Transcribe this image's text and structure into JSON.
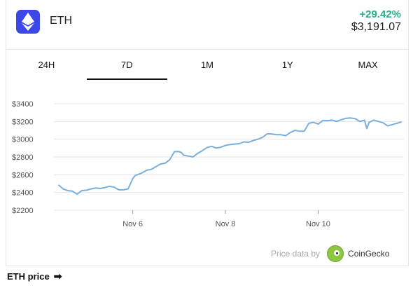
{
  "header": {
    "symbol": "ETH",
    "change": "+29.42%",
    "price": "$3,191.07"
  },
  "tabs": [
    {
      "label": "24H",
      "active": false
    },
    {
      "label": "7D",
      "active": true
    },
    {
      "label": "1M",
      "active": false
    },
    {
      "label": "1Y",
      "active": false
    },
    {
      "label": "MAX",
      "active": false
    }
  ],
  "credit": {
    "label": "Price data by",
    "provider": "CoinGecko"
  },
  "footer": {
    "label": "ETH price"
  },
  "colors": {
    "line": "#7aafdb",
    "grid": "#e6e6e6",
    "brand": "#3b47e6",
    "positive": "#27ae86"
  },
  "chart_data": {
    "type": "line",
    "x_ticks": [
      "Nov 6",
      "Nov 8",
      "Nov 10"
    ],
    "x_tick_positions": [
      6,
      8,
      10
    ],
    "xlim": [
      4.3,
      11.85
    ],
    "ylim": [
      2200,
      3400
    ],
    "y_ticks": [
      "$3400",
      "$3200",
      "$3000",
      "$2800",
      "$2600",
      "$2400",
      "$2200"
    ],
    "y_tick_values": [
      3400,
      3200,
      3000,
      2800,
      2600,
      2400,
      2200
    ],
    "grid": true,
    "series": [
      {
        "x": [
          4.4,
          4.5,
          4.6,
          4.7,
          4.8,
          4.9,
          5.0,
          5.1,
          5.2,
          5.3,
          5.4,
          5.5,
          5.6,
          5.7,
          5.8,
          5.9,
          6.0,
          6.05,
          6.1,
          6.2,
          6.3,
          6.4,
          6.5,
          6.6,
          6.7,
          6.8,
          6.9,
          7.0,
          7.05,
          7.1,
          7.2,
          7.3,
          7.4,
          7.5,
          7.6,
          7.7,
          7.8,
          7.9,
          8.0,
          8.1,
          8.2,
          8.3,
          8.4,
          8.5,
          8.6,
          8.7,
          8.8,
          8.9,
          9.0,
          9.1,
          9.2,
          9.3,
          9.4,
          9.5,
          9.6,
          9.7,
          9.8,
          9.9,
          10.0,
          10.1,
          10.2,
          10.3,
          10.4,
          10.5,
          10.6,
          10.7,
          10.8,
          10.9,
          11.0,
          11.05,
          11.1,
          11.2,
          11.3,
          11.4,
          11.5,
          11.6,
          11.7,
          11.8
        ],
        "y": [
          2485,
          2440,
          2420,
          2415,
          2380,
          2420,
          2425,
          2440,
          2450,
          2445,
          2455,
          2470,
          2460,
          2430,
          2430,
          2440,
          2555,
          2590,
          2600,
          2620,
          2650,
          2660,
          2690,
          2720,
          2730,
          2770,
          2860,
          2860,
          2850,
          2820,
          2810,
          2800,
          2840,
          2870,
          2905,
          2920,
          2900,
          2910,
          2930,
          2940,
          2945,
          2950,
          2970,
          2965,
          2985,
          3000,
          3020,
          3060,
          3060,
          3050,
          3050,
          3040,
          3075,
          3100,
          3090,
          3090,
          3180,
          3190,
          3170,
          3210,
          3210,
          3215,
          3200,
          3220,
          3235,
          3240,
          3230,
          3200,
          3215,
          3120,
          3190,
          3215,
          3200,
          3185,
          3150,
          3165,
          3180,
          3195
        ]
      }
    ]
  }
}
